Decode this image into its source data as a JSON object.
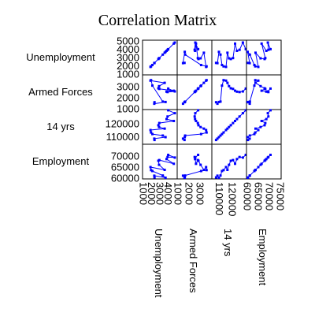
{
  "chart_data": {
    "type": "scatter",
    "title": "Correlation Matrix",
    "variables": [
      "Unemployment",
      "Armed Forces",
      "14 yrs",
      "Employment"
    ],
    "axis_ranges": {
      "Unemployment": [
        1000,
        5000
      ],
      "Armed Forces": [
        1000,
        4000
      ],
      "14 yrs": [
        105000,
        130000
      ],
      "Employment": [
        60000,
        75000
      ]
    },
    "y_ticks": {
      "Unemployment": [
        1000,
        2000,
        3000,
        4000,
        5000
      ],
      "Armed Forces": [
        1000,
        2000,
        3000
      ],
      "14 yrs": [
        110000,
        120000
      ],
      "Employment": [
        60000,
        65000,
        70000
      ]
    },
    "x_ticks": {
      "Unemployment": [
        1000,
        2000,
        3000,
        4000
      ],
      "Armed Forces": [
        1000,
        2000,
        3000
      ],
      "14 yrs": [
        110000,
        120000
      ],
      "Employment": [
        60000,
        65000,
        70000,
        75000
      ]
    },
    "series_data": {
      "Unemployment": [
        2356,
        2325,
        3682,
        3351,
        2099,
        1932,
        1870,
        3578,
        2904,
        2822,
        2936,
        4681,
        3813,
        3931,
        4806,
        4007
      ],
      "Armed Forces": [
        1590,
        1456,
        1616,
        1650,
        3099,
        3594,
        3547,
        3350,
        3048,
        2857,
        2798,
        2637,
        2552,
        2514,
        2572,
        2827
      ],
      "14 yrs": [
        107608,
        108632,
        109773,
        110929,
        112075,
        113270,
        115094,
        116219,
        117388,
        118734,
        120445,
        121950,
        123366,
        125368,
        127852,
        130081
      ],
      "Employment": [
        60323,
        61122,
        60171,
        61187,
        63221,
        63639,
        64989,
        63761,
        66019,
        67857,
        68169,
        66513,
        68655,
        69564,
        69331,
        70551
      ]
    },
    "marker_color": "#0000ff",
    "line_color": "#0000ff",
    "grid": false,
    "legend": "none"
  }
}
